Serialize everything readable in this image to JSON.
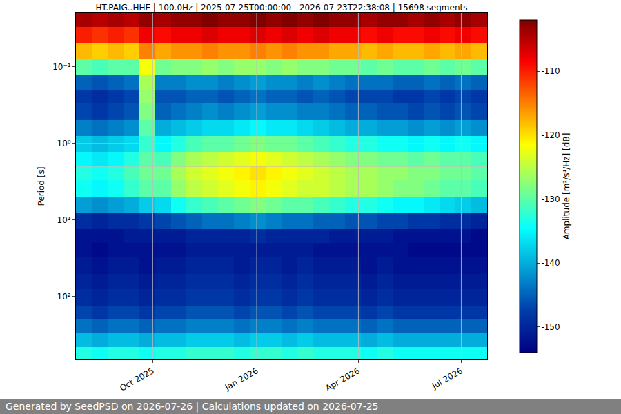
{
  "chart_data": {
    "type": "heatmap",
    "title": "HT.PAIG..HHE | 100.0Hz | 2025-07-25T00:00:00 - 2026-07-23T22:38:08 | 15698 segments",
    "ylabel": "Period [s]",
    "colorbar_label": "Amplitude [m²/s⁴/Hz] [dB]",
    "footer": "Generated by SeedPSD on 2026-07-26 | Calculations updated on 2026-07-25",
    "log": "y",
    "grid": true,
    "color": "Jet",
    "xlim": [
      "2025-07-25 00:00:00",
      "2026-07-23 22:38:08"
    ],
    "xticks": [
      {
        "value": "2025-10-01",
        "label": "Oct 2025"
      },
      {
        "value": "2026-01-01",
        "label": "Jan 2026"
      },
      {
        "value": "2026-04-01",
        "label": "Apr 2026"
      },
      {
        "value": "2026-07-01",
        "label": "Jul 2026"
      }
    ],
    "ylim": [
      660,
      0.02
    ],
    "yticks": [
      {
        "value": 0.1,
        "label": "10⁻¹"
      },
      {
        "value": 1,
        "label": "10⁰"
      },
      {
        "value": 10,
        "label": "10¹"
      },
      {
        "value": 100,
        "label": "10²"
      }
    ],
    "zlim": [
      -154,
      -102
    ],
    "zticks": [
      -150,
      -140,
      -130,
      -120,
      -110
    ],
    "time_bins": [
      "2025-07-25",
      "2025-08-08",
      "2025-08-22",
      "2025-09-05",
      "2025-09-19",
      "2025-10-03",
      "2025-10-17",
      "2025-10-31",
      "2025-11-14",
      "2025-11-28",
      "2025-12-12",
      "2025-12-26",
      "2026-01-09",
      "2026-01-23",
      "2026-02-06",
      "2026-02-20",
      "2026-03-06",
      "2026-03-20",
      "2026-04-03",
      "2026-04-17",
      "2026-05-01",
      "2026-05-15",
      "2026-05-29",
      "2026-06-12",
      "2026-06-26",
      "2026-07-10",
      "2026-07-24"
    ],
    "period_bins": [
      0.02,
      0.03,
      0.05,
      0.08,
      0.13,
      0.2,
      0.3,
      0.5,
      0.8,
      1.3,
      2,
      3,
      5,
      8,
      13,
      20,
      30,
      50,
      80,
      130,
      200,
      300,
      450,
      660
    ],
    "cells": [
      [
        -104,
        -105,
        -104,
        -105,
        -103,
        -104,
        -103,
        -103,
        -102,
        -103,
        -103,
        -102,
        -103,
        -102,
        -103,
        -102,
        -103,
        -103,
        -104,
        -103,
        -103,
        -104,
        -103,
        -104,
        -103,
        -104
      ],
      [
        -110,
        -111,
        -110,
        -111,
        -108,
        -109,
        -108,
        -108,
        -107,
        -108,
        -108,
        -107,
        -108,
        -107,
        -108,
        -107,
        -108,
        -108,
        -109,
        -108,
        -109,
        -109,
        -108,
        -109,
        -108,
        -109
      ],
      [
        -118,
        -119,
        -118,
        -119,
        -115,
        -117,
        -116,
        -116,
        -115,
        -116,
        -116,
        -115,
        -116,
        -115,
        -116,
        -116,
        -117,
        -117,
        -118,
        -117,
        -118,
        -118,
        -117,
        -118,
        -117,
        -118
      ],
      [
        -130,
        -131,
        -130,
        -130,
        -122,
        -129,
        -128,
        -128,
        -127,
        -128,
        -127,
        -127,
        -128,
        -127,
        -128,
        -128,
        -129,
        -129,
        -130,
        -129,
        -130,
        -130,
        -129,
        -130,
        -129,
        -130
      ],
      [
        -145,
        -146,
        -145,
        -144,
        -126,
        -143,
        -143,
        -142,
        -142,
        -143,
        -142,
        -141,
        -142,
        -142,
        -143,
        -142,
        -143,
        -144,
        -144,
        -144,
        -145,
        -145,
        -144,
        -145,
        -144,
        -145
      ],
      [
        -148,
        -149,
        -148,
        -147,
        -127,
        -146,
        -146,
        -145,
        -145,
        -146,
        -145,
        -144,
        -145,
        -145,
        -146,
        -145,
        -146,
        -147,
        -147,
        -147,
        -148,
        -148,
        -147,
        -148,
        -147,
        -148
      ],
      [
        -147,
        -148,
        -147,
        -146,
        -128,
        -145,
        -144,
        -143,
        -142,
        -143,
        -142,
        -141,
        -142,
        -142,
        -143,
        -143,
        -144,
        -145,
        -145,
        -146,
        -146,
        -147,
        -146,
        -147,
        -146,
        -147
      ],
      [
        -143,
        -144,
        -143,
        -142,
        -130,
        -140,
        -139,
        -138,
        -137,
        -137,
        -136,
        -135,
        -136,
        -136,
        -137,
        -138,
        -139,
        -140,
        -140,
        -141,
        -141,
        -142,
        -141,
        -142,
        -141,
        -142
      ],
      [
        -138,
        -139,
        -138,
        -137,
        -132,
        -135,
        -133,
        -131,
        -130,
        -130,
        -129,
        -128,
        -129,
        -129,
        -130,
        -131,
        -132,
        -133,
        -133,
        -134,
        -134,
        -135,
        -134,
        -135,
        -134,
        -135
      ],
      [
        -135,
        -136,
        -135,
        -133,
        -130,
        -131,
        -128,
        -126,
        -125,
        -124,
        -123,
        -122,
        -123,
        -124,
        -125,
        -126,
        -127,
        -128,
        -128,
        -129,
        -129,
        -130,
        -129,
        -130,
        -130,
        -131
      ],
      [
        -133,
        -134,
        -133,
        -131,
        -129,
        -129,
        -126,
        -124,
        -123,
        -122,
        -121,
        -120,
        -121,
        -122,
        -123,
        -124,
        -125,
        -126,
        -126,
        -127,
        -127,
        -128,
        -128,
        -129,
        -129,
        -130
      ],
      [
        -134,
        -135,
        -134,
        -132,
        -130,
        -130,
        -127,
        -125,
        -124,
        -123,
        -122,
        -121,
        -122,
        -123,
        -124,
        -124,
        -125,
        -126,
        -126,
        -127,
        -128,
        -128,
        -129,
        -130,
        -130,
        -131
      ],
      [
        -141,
        -142,
        -141,
        -140,
        -138,
        -137,
        -134,
        -132,
        -131,
        -130,
        -129,
        -128,
        -129,
        -130,
        -130,
        -131,
        -132,
        -133,
        -133,
        -134,
        -135,
        -135,
        -136,
        -137,
        -138,
        -139
      ],
      [
        -149,
        -150,
        -149,
        -149,
        -148,
        -147,
        -146,
        -145,
        -144,
        -144,
        -143,
        -142,
        -143,
        -144,
        -144,
        -145,
        -145,
        -146,
        -146,
        -147,
        -147,
        -148,
        -148,
        -149,
        -149,
        -150
      ],
      [
        -152,
        -152,
        -152,
        -151,
        -151,
        -151,
        -151,
        -150,
        -150,
        -150,
        -150,
        -149,
        -150,
        -150,
        -150,
        -150,
        -151,
        -151,
        -151,
        -151,
        -152,
        -152,
        -152,
        -152,
        -152,
        -153
      ],
      [
        -152,
        -153,
        -152,
        -152,
        -152,
        -152,
        -152,
        -151,
        -151,
        -151,
        -151,
        -151,
        -151,
        -151,
        -151,
        -152,
        -152,
        -152,
        -152,
        -152,
        -152,
        -153,
        -153,
        -153,
        -153,
        -153
      ],
      [
        -151,
        -152,
        -151,
        -151,
        -152,
        -151,
        -151,
        -150,
        -150,
        -150,
        -151,
        -150,
        -150,
        -151,
        -150,
        -151,
        -151,
        -151,
        -152,
        -151,
        -152,
        -152,
        -152,
        -152,
        -152,
        -152
      ],
      [
        -150,
        -151,
        -150,
        -150,
        -151,
        -150,
        -150,
        -149,
        -149,
        -149,
        -150,
        -149,
        -149,
        -150,
        -149,
        -150,
        -150,
        -150,
        -151,
        -150,
        -151,
        -151,
        -151,
        -151,
        -151,
        -151
      ],
      [
        -149,
        -150,
        -149,
        -149,
        -150,
        -149,
        -149,
        -148,
        -148,
        -148,
        -149,
        -148,
        -148,
        -149,
        -148,
        -149,
        -149,
        -149,
        -150,
        -149,
        -150,
        -150,
        -150,
        -150,
        -150,
        -150
      ],
      [
        -147,
        -148,
        -147,
        -147,
        -148,
        -147,
        -147,
        -146,
        -146,
        -146,
        -147,
        -146,
        -146,
        -147,
        -146,
        -147,
        -147,
        -147,
        -148,
        -147,
        -148,
        -148,
        -148,
        -148,
        -148,
        -148
      ],
      [
        -144,
        -145,
        -144,
        -144,
        -145,
        -144,
        -144,
        -143,
        -143,
        -143,
        -144,
        -143,
        -143,
        -144,
        -143,
        -144,
        -144,
        -144,
        -145,
        -144,
        -145,
        -145,
        -145,
        -145,
        -145,
        -145
      ],
      [
        -139,
        -140,
        -139,
        -139,
        -140,
        -139,
        -139,
        -138,
        -138,
        -138,
        -139,
        -138,
        -138,
        -139,
        -138,
        -139,
        -139,
        -139,
        -140,
        -139,
        -140,
        -140,
        -140,
        -140,
        -140,
        -140
      ],
      [
        -133,
        -134,
        -133,
        -133,
        -134,
        -133,
        -133,
        -132,
        -132,
        -132,
        -133,
        -132,
        -132,
        -133,
        -132,
        -133,
        -133,
        -133,
        -134,
        -133,
        -134,
        -134,
        -134,
        -134,
        -134,
        -134
      ]
    ]
  }
}
